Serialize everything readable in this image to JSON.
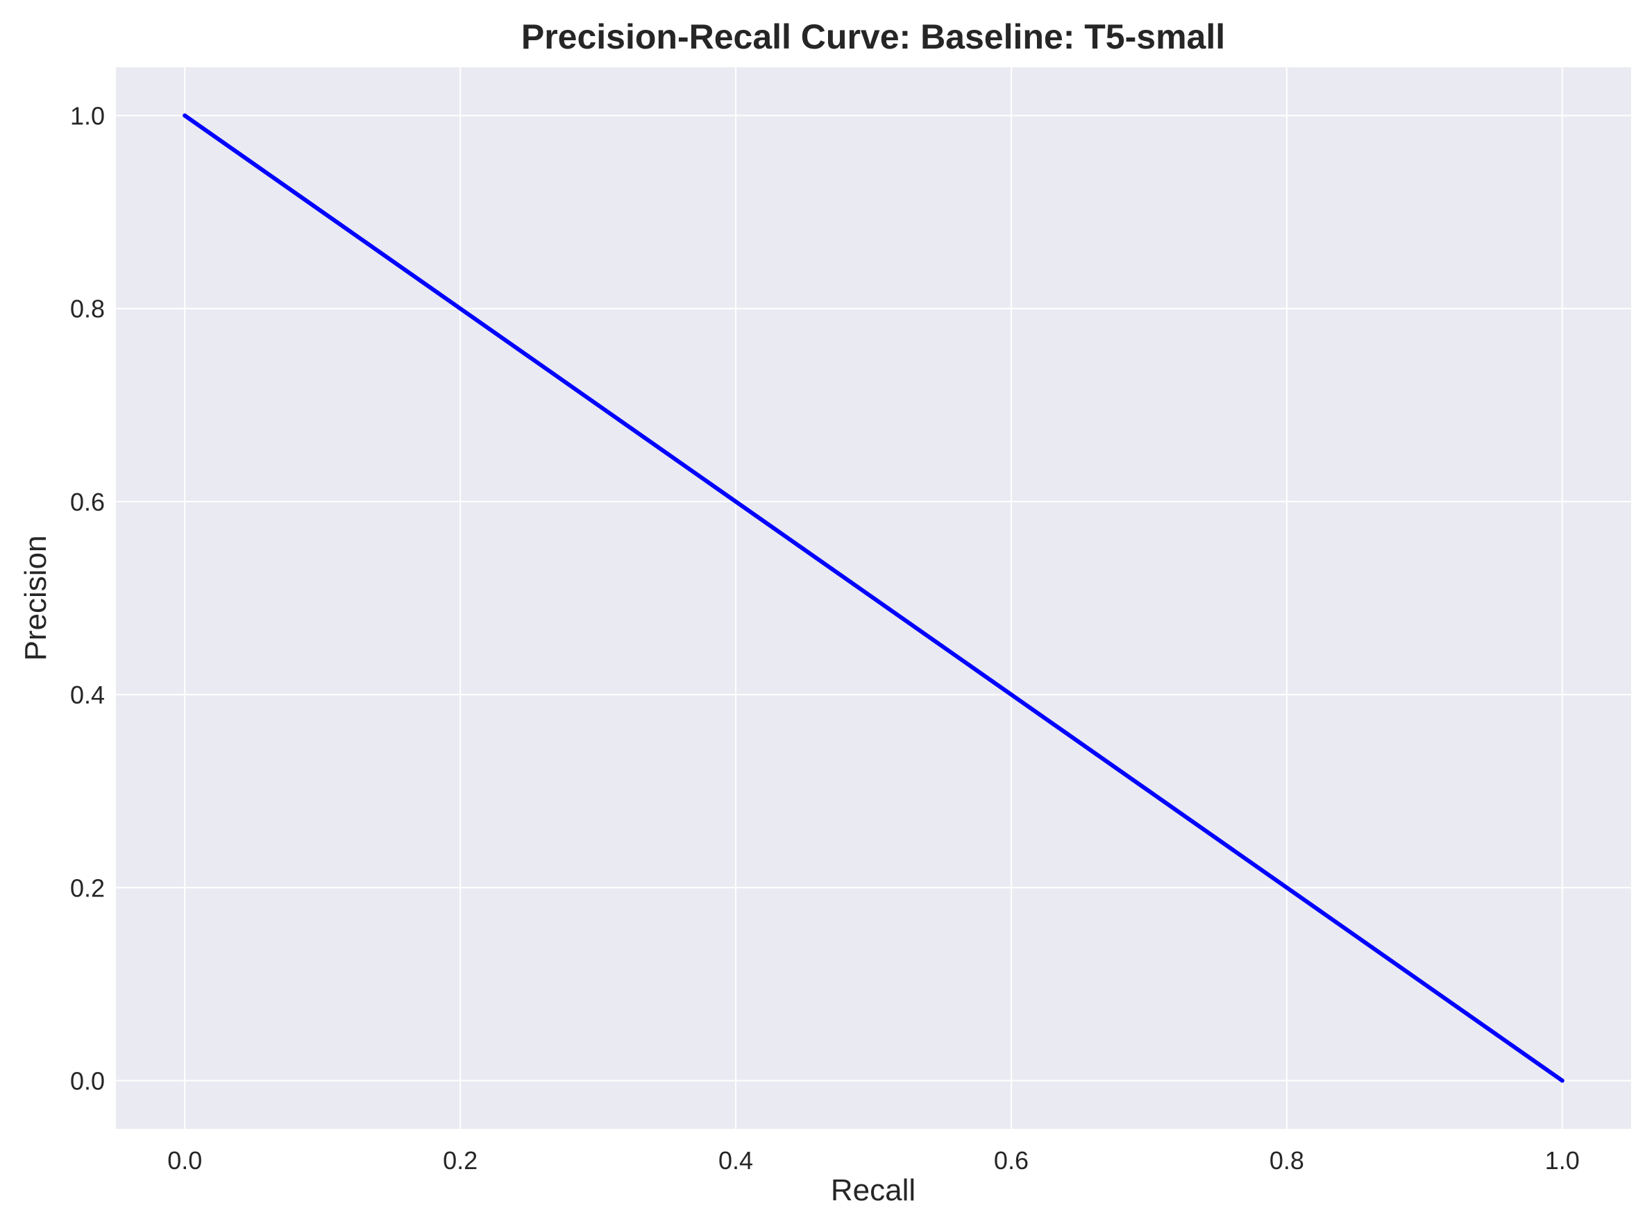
{
  "chart_data": {
    "type": "line",
    "title": "Precision-Recall Curve: Baseline: T5-small",
    "xlabel": "Recall",
    "ylabel": "Precision",
    "xlim": [
      -0.05,
      1.05
    ],
    "ylim": [
      -0.05,
      1.05
    ],
    "x_ticks": [
      0.0,
      0.2,
      0.4,
      0.6,
      0.8,
      1.0
    ],
    "x_tick_labels": [
      "0.0",
      "0.2",
      "0.4",
      "0.6",
      "0.8",
      "1.0"
    ],
    "y_ticks": [
      0.0,
      0.2,
      0.4,
      0.6,
      0.8,
      1.0
    ],
    "y_tick_labels": [
      "0.0",
      "0.2",
      "0.4",
      "0.6",
      "0.8",
      "1.0"
    ],
    "grid": true,
    "legend": "none",
    "series": [
      {
        "x": [
          0.0,
          1.0
        ],
        "y": [
          1.0,
          0.0
        ],
        "color": "#0000ff"
      }
    ],
    "colors": {
      "plot_background": "#eaeaf2",
      "grid": "#ffffff",
      "line": "#0000ff",
      "text": "#262626"
    }
  }
}
